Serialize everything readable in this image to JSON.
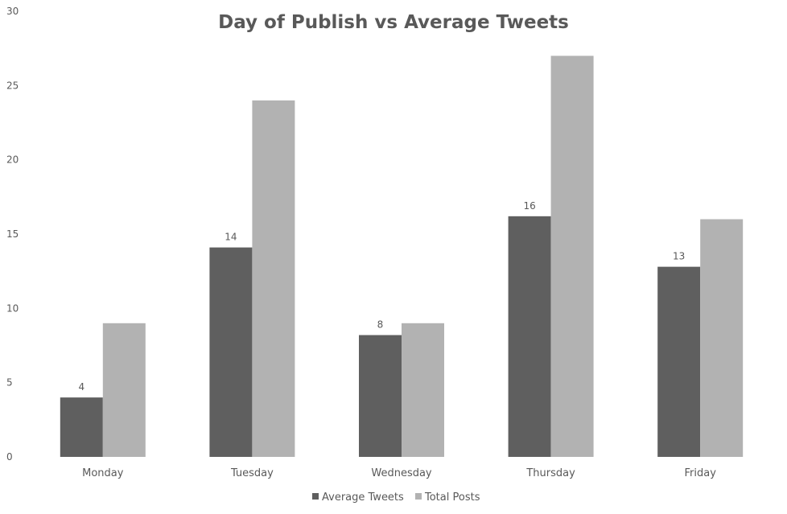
{
  "chart_data": {
    "type": "bar",
    "title": "Day of Publish vs Average Tweets",
    "xlabel": "",
    "ylabel": "",
    "categories": [
      "Monday",
      "Tuesday",
      "Wednesday",
      "Thursday",
      "Friday"
    ],
    "series": [
      {
        "name": "Average Tweets",
        "values": [
          4,
          14.1,
          8.2,
          16.2,
          12.8
        ],
        "data_labels": [
          "4",
          "14",
          "8",
          "16",
          "13"
        ],
        "color": "#5f5f5f"
      },
      {
        "name": "Total Posts",
        "values": [
          9,
          24,
          9,
          27,
          16
        ],
        "color": "#b2b2b2"
      }
    ],
    "ylim": [
      0,
      30
    ],
    "yticks": [
      "0",
      "5",
      "10",
      "15",
      "20",
      "25",
      "30"
    ],
    "grid": false,
    "legend_position": "bottom"
  }
}
